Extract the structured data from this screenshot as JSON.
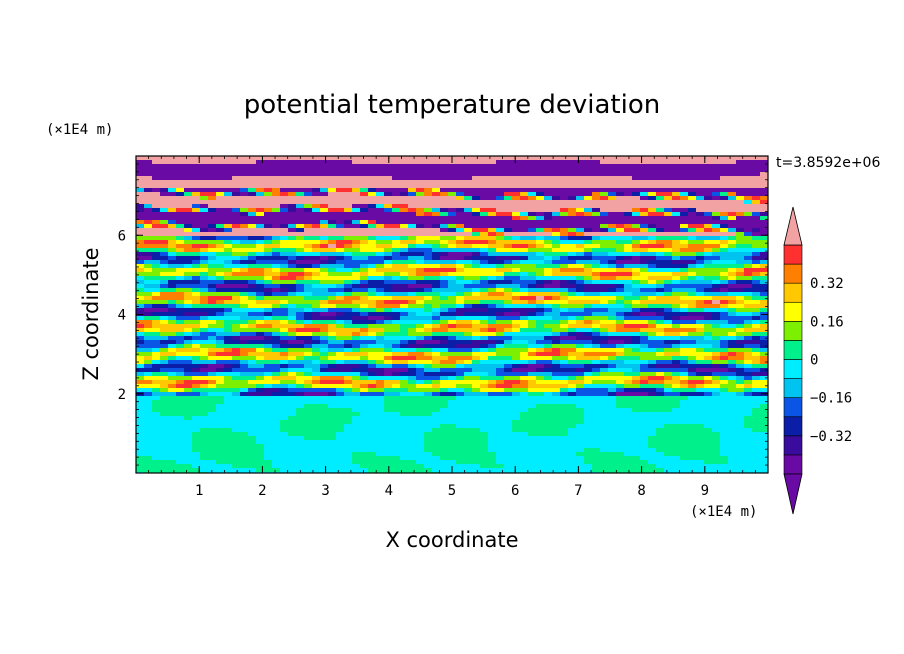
{
  "chart_data": {
    "type": "heatmap",
    "title": "potential temperature deviation",
    "xlabel": "X coordinate",
    "ylabel": "Z coordinate",
    "x_unit": "(×1E4 m)",
    "y_unit": "(×1E4 m)",
    "time_label": "t=3.8592e+06",
    "xlim": [
      0,
      10
    ],
    "ylim": [
      0,
      8
    ],
    "x_ticks": [
      1,
      2,
      3,
      4,
      5,
      6,
      7,
      8,
      9
    ],
    "y_ticks": [
      2,
      4,
      6
    ],
    "colorbar": {
      "levels": [
        -0.48,
        -0.4,
        -0.32,
        -0.24,
        -0.16,
        -0.08,
        0,
        0.08,
        0.16,
        0.24,
        0.32,
        0.4,
        0.48
      ],
      "tick_values": [
        0.32,
        0.16,
        0,
        -0.16,
        -0.32
      ],
      "tick_labels": [
        "0.32",
        "0.16",
        "0",
        "−0.16",
        "−0.32"
      ],
      "colors": [
        "#6a0aa5",
        "#3a0c9e",
        "#0b1ea8",
        "#0a55e6",
        "#00c3f0",
        "#00ecff",
        "#00f08c",
        "#7cf000",
        "#ffff00",
        "#ffc800",
        "#ff7f00",
        "#ff3030",
        "#f2a2a2"
      ],
      "under_color": "#6a0aa5",
      "over_color": "#f2a2a2"
    }
  }
}
